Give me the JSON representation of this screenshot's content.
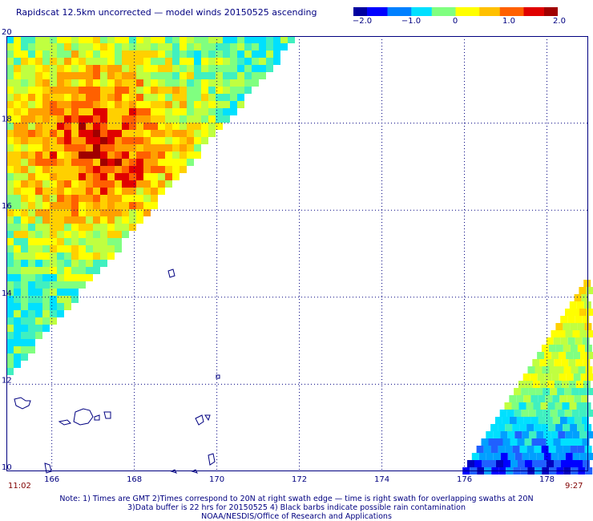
{
  "header": {
    "title": "Rapidscat 12.5km uncorrected — model winds 20150525 ascending"
  },
  "colorbar": {
    "ticks": [
      "−2.0",
      "−1.0",
      "0",
      "1.0",
      "2.0"
    ],
    "colors": [
      "#0000a0",
      "#0000ff",
      "#0080ff",
      "#00e0ff",
      "#80ff80",
      "#ffff00",
      "#ffc000",
      "#ff6000",
      "#e00000",
      "#a00000"
    ]
  },
  "map": {
    "lat_labels": [
      "20",
      "18",
      "16",
      "14",
      "12",
      "10"
    ],
    "lon_labels": [
      "166",
      "168",
      "170",
      "172",
      "174",
      "176",
      "178"
    ],
    "lat_range": [
      10,
      20
    ],
    "lon_range": [
      164.9,
      179.0
    ],
    "grid": "dotted"
  },
  "times": {
    "left": "11:02",
    "right": "9:27"
  },
  "notes": {
    "line1": "Note: 1) Times are GMT 2)Times correspond to 20N at right swath edge — time is right swath for overlapping swaths at 20N",
    "line2": "3)Data buffer is 22 hrs for 20150525 4) Black barbs indicate possible rain contamination",
    "line3": "NOAA/NESDIS/Office of Research and Applications"
  }
}
